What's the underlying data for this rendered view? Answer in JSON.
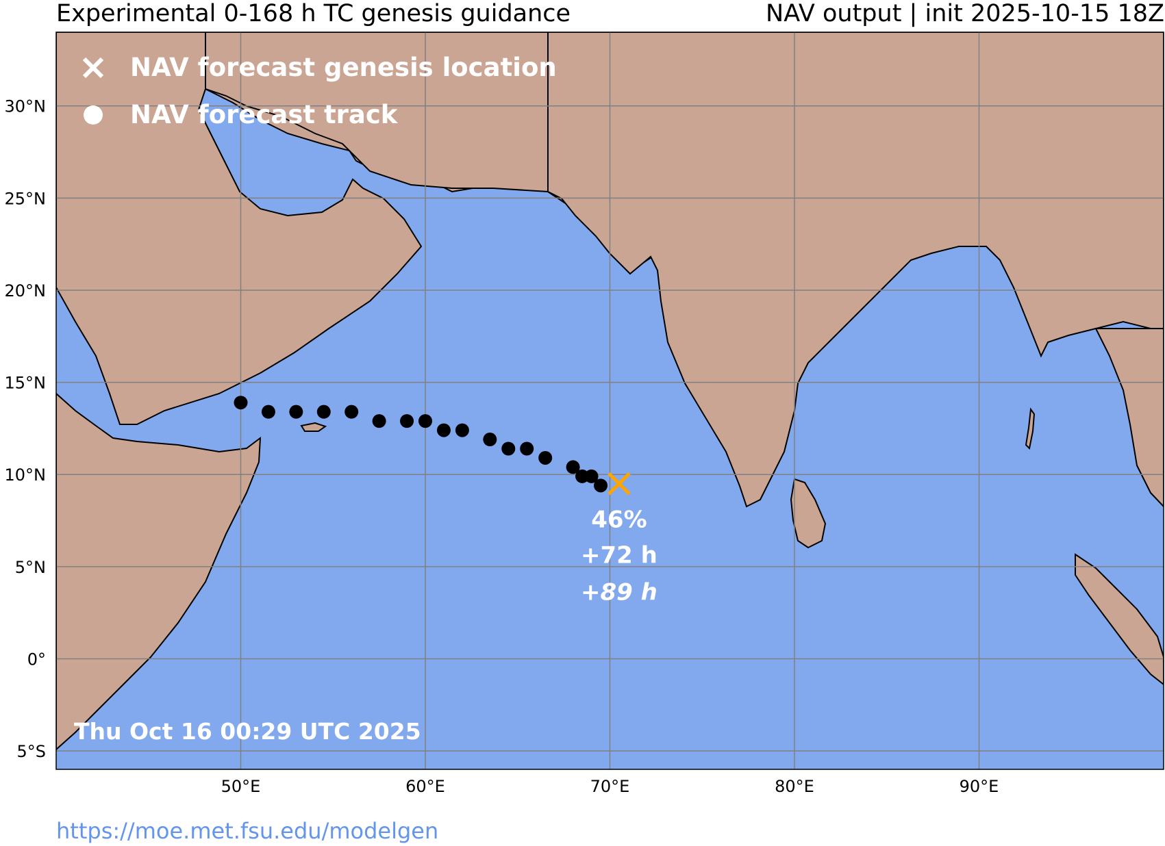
{
  "header": {
    "title_left": "Experimental 0-168 h TC genesis guidance",
    "title_right": "NAV output | init 2025-10-15 18Z"
  },
  "footer": {
    "url": "https://moe.met.fsu.edu/modelgen"
  },
  "colors": {
    "ocean": "#82a8ee",
    "land": "#cba593",
    "genesis_marker": "#ffa500",
    "track": "#000000",
    "grid": "#808080"
  },
  "map": {
    "lon_range": [
      40,
      100
    ],
    "lat_range": [
      -6,
      34
    ],
    "lon_ticks": [
      {
        "value": 50,
        "label": "50°E"
      },
      {
        "value": 60,
        "label": "60°E"
      },
      {
        "value": 70,
        "label": "70°E"
      },
      {
        "value": 80,
        "label": "80°E"
      },
      {
        "value": 90,
        "label": "90°E"
      }
    ],
    "lat_ticks": [
      {
        "value": 30,
        "label": "30°N"
      },
      {
        "value": 25,
        "label": "25°N"
      },
      {
        "value": 20,
        "label": "20°N"
      },
      {
        "value": 15,
        "label": "15°N"
      },
      {
        "value": 10,
        "label": "10°N"
      },
      {
        "value": 5,
        "label": "5°N"
      },
      {
        "value": 0,
        "label": "0°"
      },
      {
        "value": -5,
        "label": "5°S"
      }
    ],
    "legend": {
      "genesis_label": "NAV forecast genesis location",
      "track_label": "NAV forecast track"
    },
    "genesis": {
      "lon": 70.5,
      "lat": 9.5,
      "probability": "46%",
      "lead_time": "+72 h",
      "secondary_time": "+89 h"
    },
    "track": [
      {
        "lon": 50.0,
        "lat": 13.9
      },
      {
        "lon": 51.5,
        "lat": 13.4
      },
      {
        "lon": 53.0,
        "lat": 13.4
      },
      {
        "lon": 54.5,
        "lat": 13.4
      },
      {
        "lon": 56.0,
        "lat": 13.4
      },
      {
        "lon": 57.5,
        "lat": 12.9
      },
      {
        "lon": 59.0,
        "lat": 12.9
      },
      {
        "lon": 60.0,
        "lat": 12.9
      },
      {
        "lon": 61.0,
        "lat": 12.4
      },
      {
        "lon": 62.0,
        "lat": 12.4
      },
      {
        "lon": 63.5,
        "lat": 11.9
      },
      {
        "lon": 64.5,
        "lat": 11.4
      },
      {
        "lon": 65.5,
        "lat": 11.4
      },
      {
        "lon": 66.5,
        "lat": 10.9
      },
      {
        "lon": 68.0,
        "lat": 10.4
      },
      {
        "lon": 68.5,
        "lat": 9.9
      },
      {
        "lon": 69.0,
        "lat": 9.9
      },
      {
        "lon": 69.5,
        "lat": 9.4
      }
    ],
    "timestamp": "Thu Oct 16 00:29 UTC 2025"
  }
}
